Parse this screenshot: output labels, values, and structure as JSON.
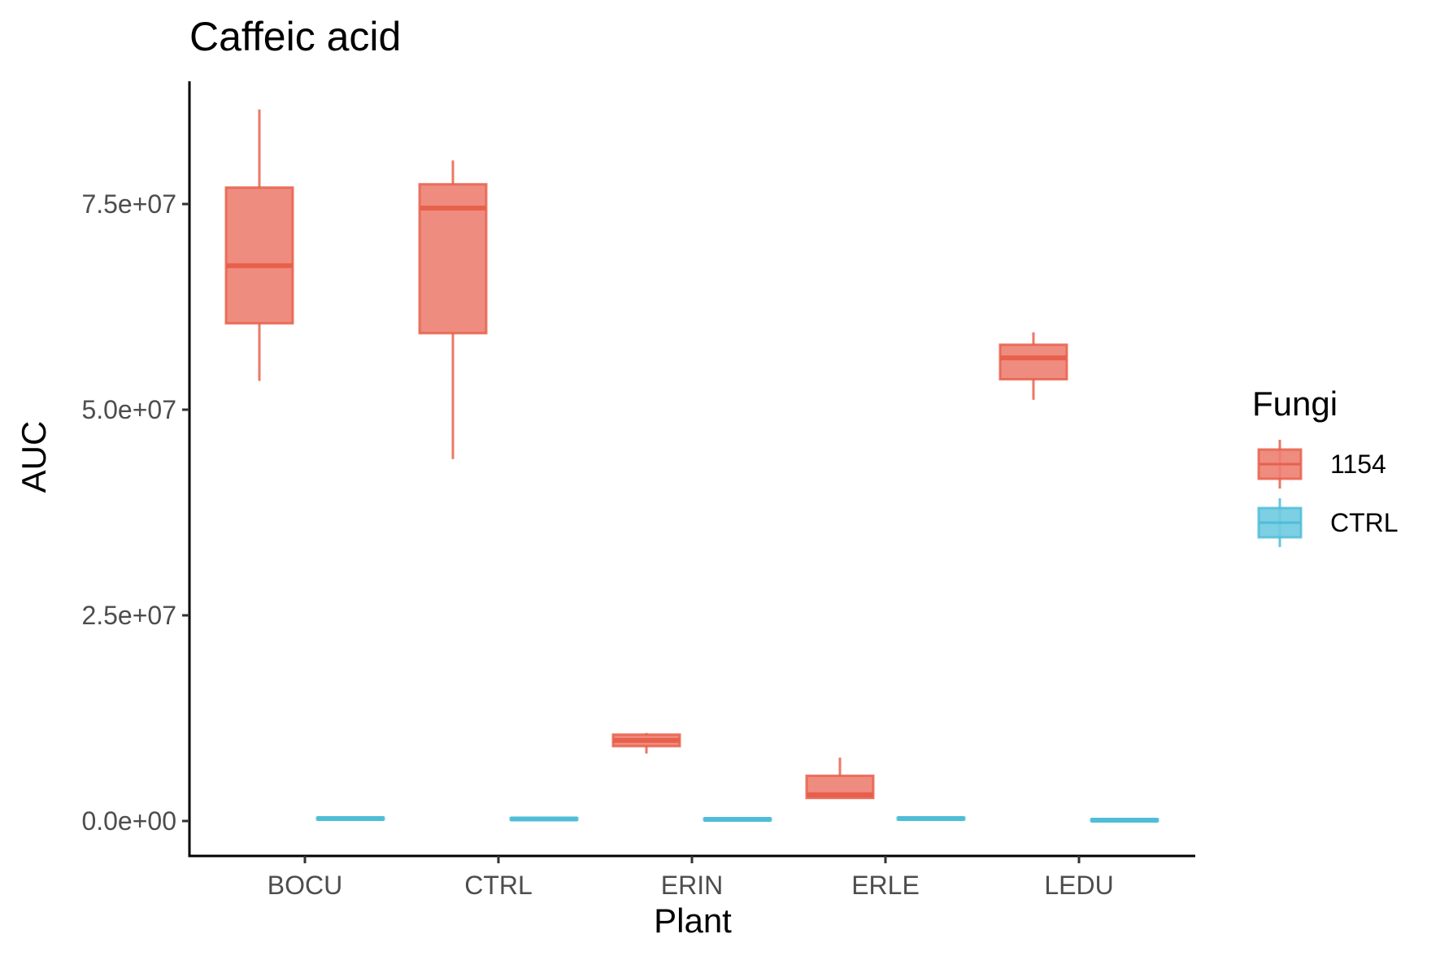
{
  "chart_data": {
    "type": "boxplot",
    "title": "Caffeic acid",
    "xlabel": "Plant",
    "ylabel": "AUC",
    "categories": [
      "BOCU",
      "CTRL",
      "ERIN",
      "ERLE",
      "LEDU"
    ],
    "y_ticks": [
      {
        "value": 0,
        "label": "0.0e+00"
      },
      {
        "value": 25000000,
        "label": "2.5e+07"
      },
      {
        "value": 50000000,
        "label": "5.0e+07"
      },
      {
        "value": 75000000,
        "label": "7.5e+07"
      }
    ],
    "ylim": [
      -4000000,
      90000000
    ],
    "grid": false,
    "legend": {
      "title": "Fungi",
      "position": "right"
    },
    "series": [
      {
        "name": "1154",
        "color": "#E8604C",
        "fill": "#EC7F71",
        "boxes": [
          {
            "category": "BOCU",
            "min": 53500000,
            "q1": 60500000,
            "median": 67500000,
            "q3": 77000000,
            "max": 86500000
          },
          {
            "category": "CTRL",
            "min": 44000000,
            "q1": 59300000,
            "median": 74500000,
            "q3": 77400000,
            "max": 80300000
          },
          {
            "category": "ERIN",
            "min": 8200000,
            "q1": 9100000,
            "median": 9800000,
            "q3": 10500000,
            "max": 10700000
          },
          {
            "category": "ERLE",
            "min": 2800000,
            "q1": 2800000,
            "median": 3200000,
            "q3": 5500000,
            "max": 7700000
          },
          {
            "category": "LEDU",
            "min": 51200000,
            "q1": 53700000,
            "median": 56300000,
            "q3": 57900000,
            "max": 59400000
          }
        ]
      },
      {
        "name": "CTRL",
        "color": "#4FBDD8",
        "fill": "#6FCAE0",
        "boxes": [
          {
            "category": "BOCU",
            "min": 100000,
            "q1": 200000,
            "median": 300000,
            "q3": 400000,
            "max": 500000
          },
          {
            "category": "CTRL",
            "min": 100000,
            "q1": 150000,
            "median": 250000,
            "q3": 350000,
            "max": 450000
          },
          {
            "category": "ERIN",
            "min": 50000,
            "q1": 100000,
            "median": 200000,
            "q3": 300000,
            "max": 400000
          },
          {
            "category": "ERLE",
            "min": 100000,
            "q1": 200000,
            "median": 300000,
            "q3": 400000,
            "max": 500000
          },
          {
            "category": "LEDU",
            "min": 0,
            "q1": 50000,
            "median": 100000,
            "q3": 200000,
            "max": 300000
          }
        ]
      }
    ]
  }
}
